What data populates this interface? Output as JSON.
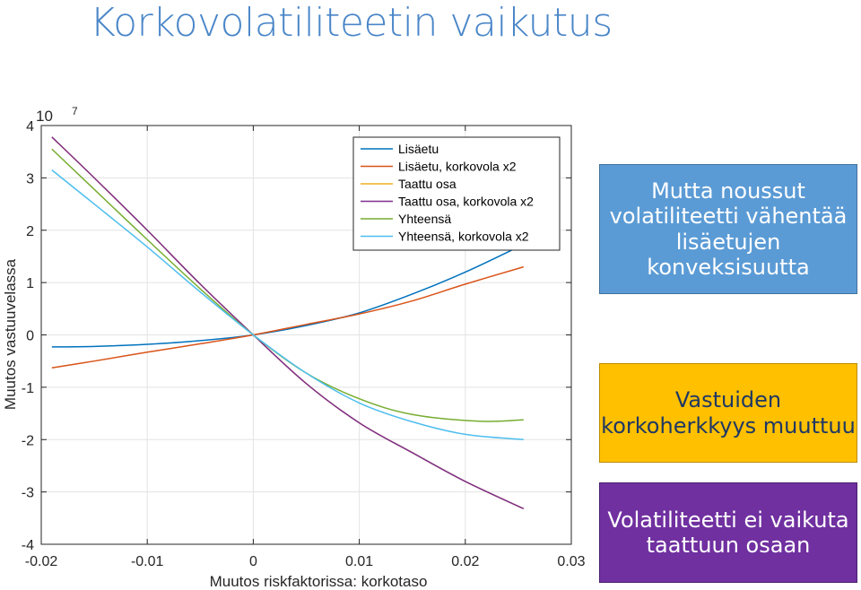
{
  "slide": {
    "title": "Korkovolatiliteetin vaikutus"
  },
  "callouts": [
    {
      "text": "Mutta noussut volatiliteetti vähentää lisäetujen konveksisuutta",
      "color": "#5b9bd5"
    },
    {
      "text": "Vastuiden korkoherkkyys muuttuu",
      "color": "#ffc000"
    },
    {
      "text": "Volatiliteetti ei vaikuta taattuun osaan",
      "color": "#7030a0"
    }
  ],
  "chart_data": {
    "type": "line",
    "title": "",
    "xlabel": "Muutos riskfaktorissa: korkotaso",
    "ylabel": "Muutos vastuuvelassa",
    "y_exponent_label": "× 10^7",
    "xlim": [
      -0.02,
      0.03
    ],
    "ylim": [
      -4,
      4
    ],
    "xticks": [
      -0.02,
      -0.01,
      0,
      0.01,
      0.02,
      0.03
    ],
    "xtick_labels": [
      "-0.02",
      "-0.01",
      "0",
      "0.01",
      "0.02",
      "0.03"
    ],
    "yticks": [
      4,
      3,
      2,
      1,
      0,
      -1,
      -2,
      -3,
      -4
    ],
    "ytick_labels": [
      "4",
      "3",
      "2",
      "1",
      "0",
      "-1",
      "-2",
      "-3",
      "-4"
    ],
    "y_multiplier_text": {
      "base": "10",
      "exp": "7"
    },
    "grid": true,
    "legend_position": "top-right",
    "series": [
      {
        "name": "Lisäetu",
        "color": "#0072bd",
        "x": [
          -0.019,
          -0.015,
          -0.01,
          -0.005,
          0,
          0.005,
          0.01,
          0.015,
          0.02,
          0.025
        ],
        "y": [
          -0.23,
          -0.22,
          -0.18,
          -0.11,
          0,
          0.18,
          0.42,
          0.78,
          1.2,
          1.68
        ]
      },
      {
        "name": "Lisäetu, korkovola x2",
        "color": "#d95319",
        "x": [
          -0.019,
          -0.015,
          -0.01,
          -0.005,
          0,
          0.005,
          0.01,
          0.015,
          0.02,
          0.0255
        ],
        "y": [
          -0.63,
          -0.5,
          -0.33,
          -0.17,
          0,
          0.2,
          0.4,
          0.65,
          0.97,
          1.3
        ]
      },
      {
        "name": "Taattu osa",
        "color": "#edb120",
        "x": [
          -0.019,
          -0.015,
          -0.01,
          -0.005,
          0,
          0.005,
          0.01,
          0.015,
          0.02,
          0.0255
        ],
        "y": [
          3.78,
          3.0,
          2.0,
          0.97,
          0,
          -0.93,
          -1.68,
          -2.25,
          -2.8,
          -3.32
        ]
      },
      {
        "name": "Taattu osa, korkovola x2",
        "color": "#7e2f8e",
        "x": [
          -0.019,
          -0.015,
          -0.01,
          -0.005,
          0,
          0.005,
          0.01,
          0.015,
          0.02,
          0.0255
        ],
        "y": [
          3.78,
          3.0,
          2.0,
          0.97,
          0,
          -0.93,
          -1.68,
          -2.25,
          -2.8,
          -3.32
        ]
      },
      {
        "name": "Yhteensä",
        "color": "#77ac30",
        "x": [
          -0.019,
          -0.015,
          -0.01,
          -0.005,
          0,
          0.005,
          0.01,
          0.015,
          0.0215,
          0.0255
        ],
        "y": [
          3.55,
          2.78,
          1.82,
          0.88,
          0,
          -0.73,
          -1.22,
          -1.52,
          -1.65,
          -1.62
        ]
      },
      {
        "name": "Yhteensä, korkovola x2",
        "color": "#4dbeee",
        "x": [
          -0.019,
          -0.015,
          -0.01,
          -0.005,
          0,
          0.005,
          0.01,
          0.015,
          0.02,
          0.0255
        ],
        "y": [
          3.15,
          2.5,
          1.68,
          0.82,
          0,
          -0.73,
          -1.3,
          -1.66,
          -1.9,
          -2.0
        ]
      }
    ]
  }
}
